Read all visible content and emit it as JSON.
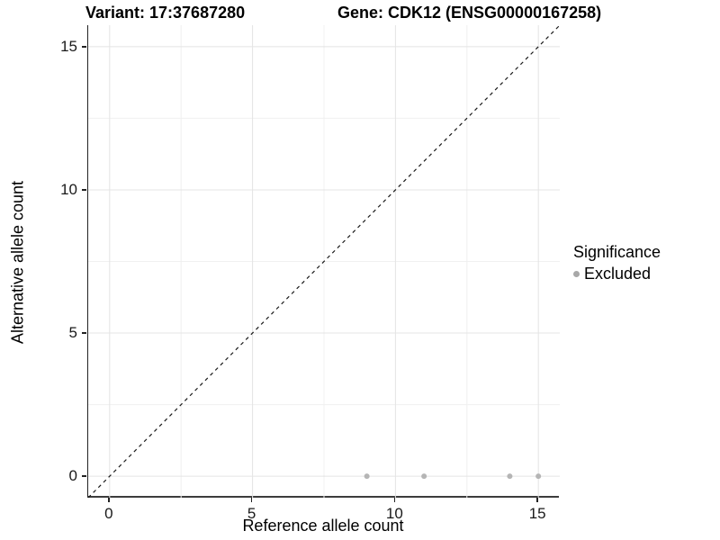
{
  "titles": {
    "variant": "Variant: 17:37687280",
    "gene": "Gene: CDK12 (ENSG00000167258)"
  },
  "chart_data": {
    "type": "scatter",
    "title_left": "Variant: 17:37687280",
    "title_right": "Gene: CDK12 (ENSG00000167258)",
    "xlabel": "Reference allele count",
    "ylabel": "Alternative allele count",
    "xlim": [
      -0.75,
      15.75
    ],
    "ylim": [
      -0.75,
      15.75
    ],
    "x_ticks": [
      0,
      5,
      10,
      15
    ],
    "y_ticks": [
      0,
      5,
      10,
      15
    ],
    "x_minor_ticks": [
      2.5,
      7.5,
      12.5
    ],
    "y_minor_ticks": [
      2.5,
      7.5,
      12.5
    ],
    "grid": true,
    "reference_line": {
      "type": "identity",
      "slope": 1,
      "intercept": 0,
      "style": "dashed"
    },
    "series": [
      {
        "name": "Excluded",
        "points": [
          {
            "x": 9,
            "y": 0
          },
          {
            "x": 11,
            "y": 0
          },
          {
            "x": 14,
            "y": 0
          },
          {
            "x": 15,
            "y": 0
          }
        ]
      }
    ],
    "legend": {
      "title": "Significance",
      "position": "right",
      "entries": [
        {
          "label": "Excluded"
        }
      ]
    }
  },
  "colors": {
    "point": "#b5b5b5",
    "legend_key": "#a8a8a8",
    "grid_major": "#e4e4e4",
    "grid_minor": "#f0f0f0",
    "reference_line": "#1a1a1a",
    "axis_text": "#1a1a1a"
  }
}
